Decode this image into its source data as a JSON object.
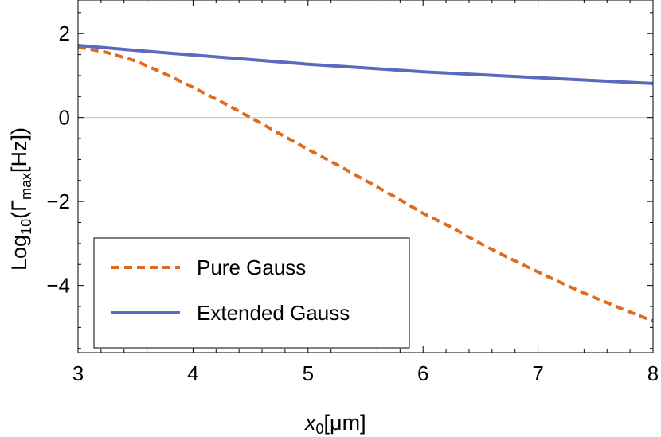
{
  "chart_data": {
    "type": "line",
    "xlabel_main": "x",
    "xlabel_sub": "0",
    "xlabel_unit": "[μm]",
    "ylabel_main": "Log",
    "ylabel_sub10": "10",
    "ylabel_mid": "(Γ",
    "ylabel_submax": "max",
    "ylabel_unit": "[Hz])",
    "xlim": [
      3,
      8
    ],
    "ylim": [
      -5.6,
      2.8
    ],
    "xticks": [
      3,
      4,
      5,
      6,
      7,
      8
    ],
    "xtick_labels": [
      "3",
      "4",
      "5",
      "6",
      "7",
      "8"
    ],
    "yticks": [
      2,
      0,
      -2,
      -4
    ],
    "ytick_labels": [
      "2",
      "0",
      "−2",
      "−4"
    ],
    "grid": false,
    "zero_line": true,
    "legend_placement": "bottom-left",
    "series": [
      {
        "name": "Pure Gauss",
        "style": "dashed",
        "color": "#e06a1e",
        "x": [
          3.0,
          3.25,
          3.5,
          3.75,
          4.0,
          4.25,
          4.5,
          4.75,
          5.0,
          5.25,
          5.5,
          5.75,
          6.0,
          6.25,
          6.5,
          6.75,
          7.0,
          7.25,
          7.5,
          7.75,
          8.0
        ],
        "y": [
          1.68,
          1.55,
          1.35,
          1.05,
          0.72,
          0.37,
          0.0,
          -0.38,
          -0.76,
          -1.12,
          -1.5,
          -1.88,
          -2.28,
          -2.62,
          -3.0,
          -3.35,
          -3.68,
          -4.0,
          -4.3,
          -4.58,
          -4.85
        ]
      },
      {
        "name": "Extended Gauss",
        "style": "solid",
        "color": "#5b6abf",
        "x": [
          3.0,
          3.5,
          4.0,
          4.5,
          5.0,
          5.5,
          6.0,
          6.5,
          7.0,
          7.5,
          8.0
        ],
        "y": [
          1.72,
          1.6,
          1.49,
          1.38,
          1.27,
          1.18,
          1.09,
          1.02,
          0.95,
          0.88,
          0.81
        ]
      }
    ]
  }
}
